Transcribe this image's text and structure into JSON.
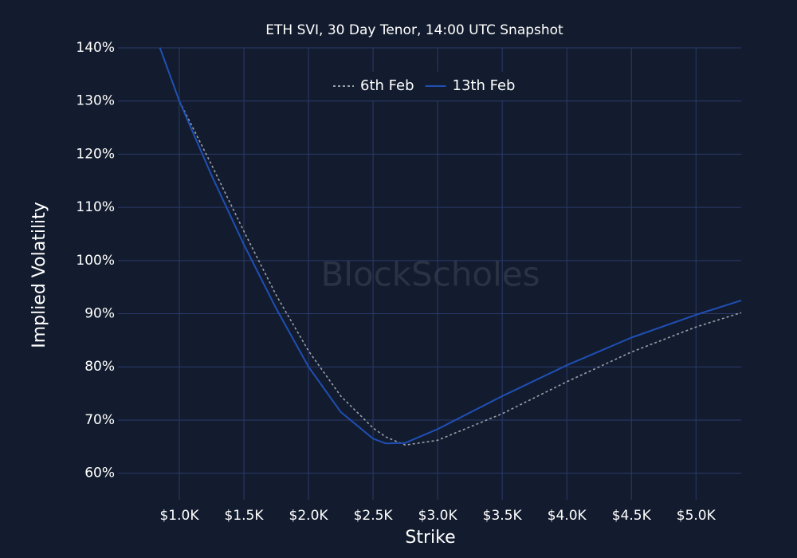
{
  "chart_data": {
    "type": "line",
    "title": "ETH SVI, 30 Day Tenor, 14:00 UTC Snapshot",
    "x_label": "Strike",
    "y_label": "Implied Volatility",
    "watermark": "BlockScholes",
    "x": [
      850,
      1000,
      1250,
      1500,
      1750,
      2000,
      2250,
      2500,
      2600,
      2750,
      3000,
      3500,
      4000,
      4500,
      5000,
      5350
    ],
    "series": [
      {
        "name": "6th Feb",
        "color": "#9aa0aa",
        "dash": true,
        "values": [
          140,
          130,
          118,
          105.5,
          93.5,
          83,
          74.5,
          68.5,
          66.8,
          65.3,
          66.2,
          71.2,
          77.2,
          82.8,
          87.5,
          90.2
        ]
      },
      {
        "name": "13th Feb",
        "color": "#1f4fb4",
        "dash": false,
        "values": [
          140,
          130,
          116,
          103,
          91,
          80,
          71.5,
          66.5,
          65.6,
          65.7,
          68.3,
          74.5,
          80.3,
          85.5,
          89.8,
          92.5
        ]
      }
    ],
    "xlim": [
      525,
      5350
    ],
    "ylim": [
      55,
      140
    ],
    "xticks": [
      {
        "value": 1000,
        "label": "$1.0K"
      },
      {
        "value": 1500,
        "label": "$1.5K"
      },
      {
        "value": 2000,
        "label": "$2.0K"
      },
      {
        "value": 2500,
        "label": "$2.5K"
      },
      {
        "value": 3000,
        "label": "$3.0K"
      },
      {
        "value": 3500,
        "label": "$3.5K"
      },
      {
        "value": 4000,
        "label": "$4.0K"
      },
      {
        "value": 4500,
        "label": "$4.5K"
      },
      {
        "value": 5000,
        "label": "$5.0K"
      }
    ],
    "yticks": [
      {
        "value": 60,
        "label": "60%"
      },
      {
        "value": 70,
        "label": "70%"
      },
      {
        "value": 80,
        "label": "80%"
      },
      {
        "value": 90,
        "label": "90%"
      },
      {
        "value": 100,
        "label": "100%"
      },
      {
        "value": 110,
        "label": "110%"
      },
      {
        "value": 120,
        "label": "120%"
      },
      {
        "value": 130,
        "label": "130%"
      },
      {
        "value": 140,
        "label": "140%"
      }
    ],
    "grid": true,
    "legend": "top"
  }
}
